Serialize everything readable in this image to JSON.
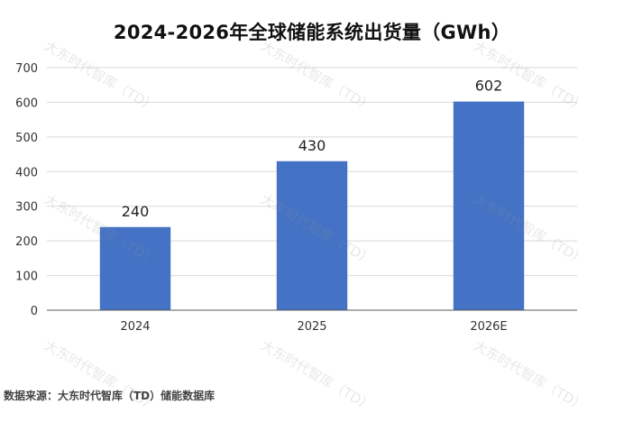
{
  "chart_data": {
    "type": "bar",
    "title": "2024-2026年全球储能系统出货量（GWh）",
    "categories": [
      "2024",
      "2025",
      "2026E"
    ],
    "values": [
      240,
      430,
      602
    ],
    "data_labels": [
      "240",
      "430",
      "602"
    ],
    "ylim": [
      0,
      700
    ],
    "yticks": [
      "0",
      "100",
      "200",
      "300",
      "400",
      "500",
      "600",
      "700"
    ],
    "grid": true,
    "legend": "none",
    "bar_color": "#4472C4",
    "grid_color": "#d9d9d9",
    "axis_color": "#595959"
  },
  "source": "数据来源：大东时代智库（TD）储能数据库",
  "watermark": "大东时代智库（TD）"
}
